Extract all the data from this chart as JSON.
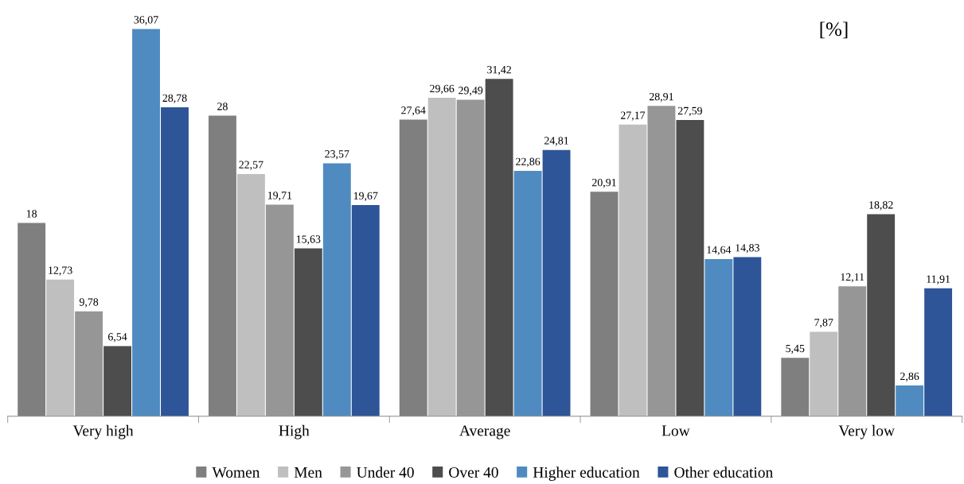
{
  "chart_data": {
    "type": "bar",
    "categories": [
      "Very high",
      "High",
      "Average",
      "Low",
      "Very low"
    ],
    "series": [
      {
        "name": "Women",
        "color": "#7f7f7f",
        "values": [
          18,
          28,
          27.64,
          20.91,
          5.45
        ],
        "value_labels": [
          "18",
          "28",
          "27,64",
          "20,91",
          "5,45"
        ]
      },
      {
        "name": "Men",
        "color": "#bfbfbf",
        "values": [
          12.73,
          22.57,
          29.66,
          27.17,
          7.87
        ],
        "value_labels": [
          "12,73",
          "22,57",
          "29,66",
          "27,17",
          "7,87"
        ]
      },
      {
        "name": "Under 40",
        "color": "#969696",
        "values": [
          9.78,
          19.71,
          29.49,
          28.91,
          12.11
        ],
        "value_labels": [
          "9,78",
          "19,71",
          "29,49",
          "28,91",
          "12,11"
        ]
      },
      {
        "name": "Over 40",
        "color": "#4d4d4d",
        "values": [
          6.54,
          15.63,
          31.42,
          27.59,
          18.82
        ],
        "value_labels": [
          "6,54",
          "15,63",
          "31,42",
          "27,59",
          "18,82"
        ]
      },
      {
        "name": "Higher education",
        "color": "#4f8bc0",
        "values": [
          36.07,
          23.57,
          22.86,
          14.64,
          2.86
        ],
        "value_labels": [
          "36,07",
          "23,57",
          "22,86",
          "14,64",
          "2,86"
        ]
      },
      {
        "name": "Other education",
        "color": "#2e5597",
        "values": [
          28.78,
          19.67,
          24.81,
          14.83,
          11.91
        ],
        "value_labels": [
          "28,78",
          "19,67",
          "24,81",
          "14,83",
          "11,91"
        ]
      }
    ],
    "annotations": [
      "[%]"
    ],
    "legend": "bottom",
    "grid": false,
    "tick_labels": "x"
  }
}
